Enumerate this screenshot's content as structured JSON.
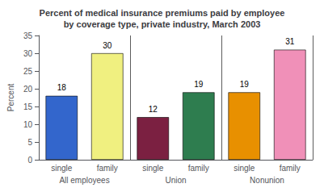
{
  "chart_data": {
    "type": "bar",
    "title": "Percent of medical insurance premiums paid by employee\nby coverage type, private industry, March 2003",
    "ylabel": "Percent",
    "categories": [
      "single",
      "family",
      "single",
      "family",
      "single",
      "family"
    ],
    "groups": [
      "All employees",
      "Union",
      "Nonunion"
    ],
    "values": [
      18,
      30,
      12,
      19,
      19,
      31
    ],
    "colors": [
      "#3366cc",
      "#f0f080",
      "#7b2041",
      "#2e7d4f",
      "#e89000",
      "#f090b8"
    ],
    "ylim": [
      0,
      35
    ],
    "yticks": [
      0,
      5,
      10,
      15,
      20,
      25,
      30,
      35
    ],
    "grid": false,
    "data_labels": true
  }
}
